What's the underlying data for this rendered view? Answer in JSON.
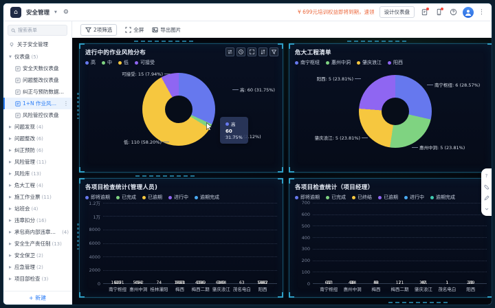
{
  "topbar": {
    "app_title": "安全管理",
    "promo": "¥ 699元培训权益即将到期，速领",
    "design_button": "设计仪表盘"
  },
  "sidebar": {
    "search_placeholder": "搜索表单",
    "about_label": "关于安全管理",
    "new_button": "+ 新建",
    "items": [
      {
        "label": "仪表盘",
        "count": "(5)",
        "expanded": true,
        "children": [
          {
            "label": "安全天数仪表盘"
          },
          {
            "label": "问题整改仪表盘"
          },
          {
            "label": "纠正与预防数据看板"
          },
          {
            "label": "1+N 作业风险看板",
            "active": true
          },
          {
            "label": "风险管控仪表盘"
          }
        ]
      },
      {
        "label": "问题发现",
        "count": "(4)"
      },
      {
        "label": "问题整改",
        "count": "(6)"
      },
      {
        "label": "纠正预防",
        "count": "(6)"
      },
      {
        "label": "风险管理",
        "count": "(11)"
      },
      {
        "label": "风险库",
        "count": "(13)"
      },
      {
        "label": "危大工程",
        "count": "(4)"
      },
      {
        "label": "施工作业票",
        "count": "(11)"
      },
      {
        "label": "站班会",
        "count": "(4)"
      },
      {
        "label": "违章扣分",
        "count": "(16)"
      },
      {
        "label": "承包商内部违章扣分",
        "count": "(4)"
      },
      {
        "label": "安全生产责任制",
        "count": "(13)"
      },
      {
        "label": "安全保卫",
        "count": "(2)"
      },
      {
        "label": "应急管理",
        "count": "(2)"
      },
      {
        "label": "项目部检查",
        "count": "(3)"
      }
    ]
  },
  "toolbar": {
    "filter": "2项筛选",
    "fullscreen": "全屏",
    "export": "导出图片"
  },
  "tooltip": {
    "name": "高",
    "value": "60",
    "percent": "31.75%",
    "color": "#6678ee"
  },
  "chart_data": [
    {
      "type": "pie",
      "title": "进行中的作业风险分布",
      "legend_position": "top",
      "items": [
        {
          "name": "高",
          "value": 60,
          "pct": 31.75,
          "label": "高: 60 (31.75%)",
          "color": "#6678ee"
        },
        {
          "name": "中",
          "value": 4,
          "pct": 2.12,
          "label": "中: 4 (2.12%)",
          "color": "#7fd381"
        },
        {
          "name": "低",
          "value": 110,
          "pct": 58.2,
          "label": "低: 110 (58.20%)",
          "color": "#f6c73f"
        },
        {
          "name": "可接受",
          "value": 15,
          "pct": 7.93,
          "label": "可接受: 15 (7.94%)",
          "color": "#8f66f2"
        }
      ]
    },
    {
      "type": "pie",
      "title": "危大工程清单",
      "legend_position": "top",
      "items": [
        {
          "name": "南宁枢纽",
          "value": 6,
          "pct": 28.57,
          "label": "南宁枢纽: 6 (28.57%)",
          "color": "#6678ee"
        },
        {
          "name": "惠州中洞",
          "value": 5,
          "pct": 23.81,
          "label": "惠州中洞: 5 (23.81%)",
          "color": "#7fd381"
        },
        {
          "name": "肇庆浪江",
          "value": 5,
          "pct": 23.81,
          "label": "肇庆浪江: 5 (23.81%)",
          "color": "#f6c73f"
        },
        {
          "name": "阳西",
          "value": 5,
          "pct": 23.81,
          "label": "阳西: 5 (23.81%)",
          "color": "#8f66f2"
        }
      ]
    },
    {
      "type": "bar",
      "title": "各项目检查统计(管理人员)",
      "stacked": true,
      "grid": true,
      "categories": [
        "南宁枢纽",
        "惠州中洞",
        "桂林灌阳",
        "梅西",
        "梅西二期",
        "肇庆浪江",
        "茂名电白",
        "阳西"
      ],
      "yticks": [
        "1.2万",
        "1万",
        "8000",
        "6000",
        "4000",
        "2000",
        "0"
      ],
      "ymax": 12000,
      "series": [
        {
          "name": "即将逾期",
          "color": "#6678ee",
          "values": [
            20,
            9,
            74,
            9,
            12,
            13,
            63,
            2
          ]
        },
        {
          "name": "已完成",
          "color": "#7fd381",
          "values": [
            11091,
            5062,
            0,
            3881,
            4389,
            6344,
            0,
            5947
          ]
        },
        {
          "name": "已逾期",
          "color": "#f6c73f",
          "values": [
            0,
            0,
            0,
            503,
            0,
            0,
            0,
            760
          ]
        },
        {
          "name": "进行中",
          "color": "#8f66f2",
          "values": [
            0,
            0,
            0,
            0,
            0,
            0,
            0,
            0
          ]
        },
        {
          "name": "逾期完成",
          "color": "#49a9f1",
          "values": [
            627,
            494,
            0,
            1073,
            136,
            343,
            0,
            1852
          ]
        }
      ]
    },
    {
      "type": "bar",
      "title": "各项目检查统计（项目经理）",
      "stacked": true,
      "grid": true,
      "categories": [
        "南宁枢纽",
        "惠州中洞",
        "梅西",
        "梅西二期",
        "肇庆浪江",
        "茂名电白",
        "阳西"
      ],
      "yticks": [
        "700",
        "600",
        "500",
        "400",
        "300",
        "200",
        "100",
        "0"
      ],
      "ymax": 700,
      "series": [
        {
          "name": "即将逾期",
          "color": "#6678ee",
          "values": [
            3,
            3,
            0,
            0,
            3,
            1,
            6
          ]
        },
        {
          "name": "已完成",
          "color": "#7fd381",
          "values": [
            613,
            414,
            58,
            171,
            341,
            1,
            209
          ]
        },
        {
          "name": "已终结",
          "color": "#f6c73f",
          "values": [
            12,
            98,
            6,
            2,
            47,
            0,
            21
          ]
        },
        {
          "name": "已逾期",
          "color": "#8f66f2",
          "values": [
            0,
            1,
            48,
            0,
            0,
            0,
            0
          ]
        },
        {
          "name": "进行中",
          "color": "#49a9f1",
          "values": [
            0,
            0,
            0,
            0,
            0,
            0,
            0
          ]
        },
        {
          "name": "逾期完成",
          "color": "#3fc8ae",
          "values": [
            0,
            0,
            0,
            0,
            0,
            0,
            0
          ]
        }
      ]
    }
  ],
  "colors": {
    "accent": "#2b7df6",
    "panel_border": "#17506b",
    "dashboard_bg": "#04070d",
    "promo": "#ec6a3f",
    "active_item_bg": "#e9f2fd"
  }
}
